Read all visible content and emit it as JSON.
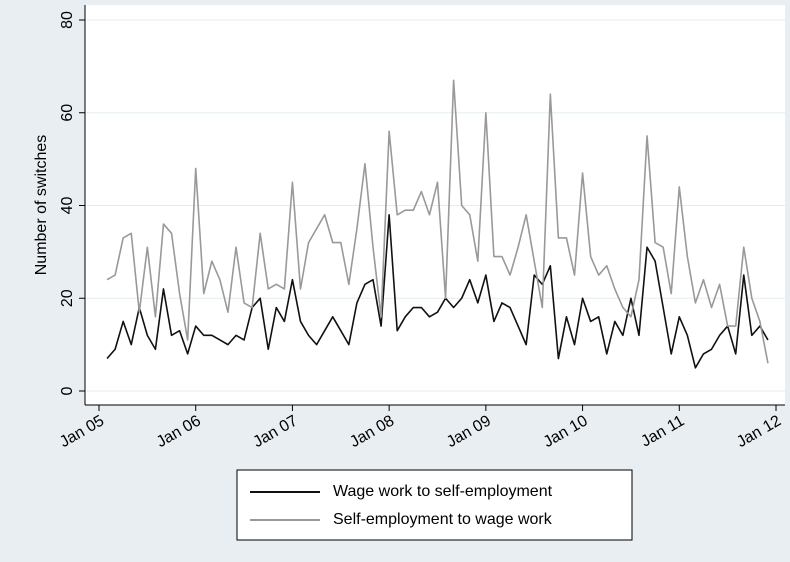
{
  "chart_data": {
    "type": "line",
    "y_label": "Number of switches",
    "x": [
      "2005-02",
      "2005-03",
      "2005-04",
      "2005-05",
      "2005-06",
      "2005-07",
      "2005-08",
      "2005-09",
      "2005-10",
      "2005-11",
      "2005-12",
      "2006-01",
      "2006-02",
      "2006-03",
      "2006-04",
      "2006-05",
      "2006-06",
      "2006-07",
      "2006-08",
      "2006-09",
      "2006-10",
      "2006-11",
      "2006-12",
      "2007-01",
      "2007-02",
      "2007-03",
      "2007-04",
      "2007-05",
      "2007-06",
      "2007-07",
      "2007-08",
      "2007-09",
      "2007-10",
      "2007-11",
      "2007-12",
      "2008-01",
      "2008-02",
      "2008-03",
      "2008-04",
      "2008-05",
      "2008-06",
      "2008-07",
      "2008-08",
      "2008-09",
      "2008-10",
      "2008-11",
      "2008-12",
      "2009-01",
      "2009-02",
      "2009-03",
      "2009-04",
      "2009-05",
      "2009-06",
      "2009-07",
      "2009-08",
      "2009-09",
      "2009-10",
      "2009-11",
      "2009-12",
      "2010-01",
      "2010-02",
      "2010-03",
      "2010-04",
      "2010-05",
      "2010-06",
      "2010-07",
      "2010-08",
      "2010-09",
      "2010-10",
      "2010-11",
      "2010-12",
      "2011-01",
      "2011-02",
      "2011-03",
      "2011-04",
      "2011-05",
      "2011-06",
      "2011-07",
      "2011-08",
      "2011-09",
      "2011-10",
      "2011-11",
      "2011-12"
    ],
    "series": [
      {
        "name": "Wage work to self-employment",
        "color": "#111111",
        "values": [
          7,
          9,
          15,
          10,
          18,
          12,
          9,
          22,
          12,
          13,
          8,
          14,
          12,
          12,
          11,
          10,
          12,
          11,
          18,
          20,
          9,
          18,
          15,
          24,
          15,
          12,
          10,
          13,
          16,
          13,
          10,
          19,
          23,
          24,
          14,
          38,
          13,
          16,
          18,
          18,
          16,
          17,
          20,
          18,
          20,
          24,
          19,
          25,
          15,
          19,
          18,
          14,
          10,
          25,
          23,
          27,
          7,
          16,
          10,
          20,
          15,
          16,
          8,
          15,
          12,
          20,
          12,
          31,
          28,
          18,
          8,
          16,
          12,
          5,
          8,
          9,
          12,
          14,
          8,
          25,
          12,
          14,
          11
        ]
      },
      {
        "name": "Self-employment to wage work",
        "color": "#999999",
        "values": [
          24,
          25,
          33,
          34,
          17,
          31,
          16,
          36,
          34,
          21,
          11,
          48,
          21,
          28,
          24,
          17,
          31,
          19,
          18,
          34,
          22,
          23,
          22,
          45,
          22,
          32,
          35,
          38,
          32,
          32,
          23,
          35,
          49,
          31,
          16,
          56,
          38,
          39,
          39,
          43,
          38,
          45,
          20,
          67,
          40,
          38,
          28,
          60,
          29,
          29,
          25,
          31,
          38,
          28,
          18,
          64,
          33,
          33,
          25,
          47,
          29,
          25,
          27,
          22,
          18,
          16,
          24,
          55,
          32,
          31,
          21,
          44,
          29,
          19,
          24,
          18,
          23,
          14,
          14,
          31,
          20,
          15,
          6
        ]
      }
    ],
    "xlim": [
      "2005-01",
      "2012-01"
    ],
    "xticks": [
      {
        "value": "2005-01",
        "label": "Jan 05"
      },
      {
        "value": "2006-01",
        "label": "Jan 06"
      },
      {
        "value": "2007-01",
        "label": "Jan 07"
      },
      {
        "value": "2008-01",
        "label": "Jan 08"
      },
      {
        "value": "2009-01",
        "label": "Jan 09"
      },
      {
        "value": "2010-01",
        "label": "Jan 10"
      },
      {
        "value": "2011-01",
        "label": "Jan 11"
      },
      {
        "value": "2012-01",
        "label": "Jan 12"
      }
    ],
    "ylim": [
      0,
      80
    ],
    "yticks": [
      0,
      20,
      40,
      60,
      80
    ],
    "grid": true,
    "legend": "bottom"
  }
}
